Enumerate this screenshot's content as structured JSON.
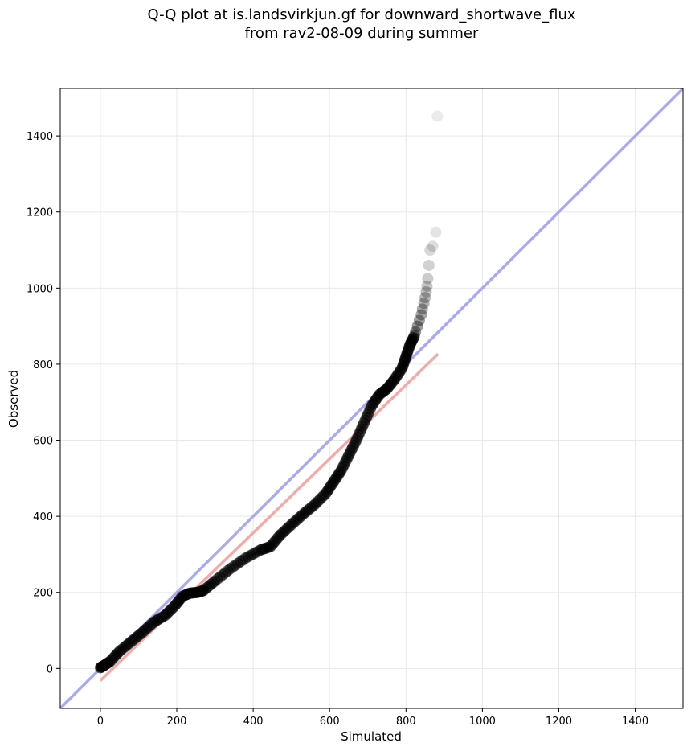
{
  "chart_data": {
    "type": "scatter",
    "title": "Q-Q plot at is.landsvirkjun.gf for downward_shortwave_flux",
    "subtitle": "from rav2-08-09 during summer",
    "xlabel": "Simulated",
    "ylabel": "Observed",
    "xlim": [
      -105,
      1525
    ],
    "ylim": [
      -105,
      1525
    ],
    "xticks": [
      0,
      200,
      400,
      600,
      800,
      1000,
      1200,
      1400
    ],
    "yticks": [
      0,
      200,
      400,
      600,
      800,
      1000,
      1200,
      1400
    ],
    "grid": true,
    "colors": {
      "points": "#000000",
      "identity_line": "#aaaaf0",
      "fit_line": "#f4aaaa",
      "grid": "#e8e8e8"
    },
    "identity_line": {
      "x": [
        -105,
        1525
      ],
      "y": [
        -105,
        1525
      ]
    },
    "fit_line": {
      "x": [
        0,
        884
      ],
      "y": [
        -32,
        827
      ]
    },
    "quantile_curve": [
      [
        0,
        2
      ],
      [
        10,
        8
      ],
      [
        25,
        18
      ],
      [
        50,
        45
      ],
      [
        80,
        70
      ],
      [
        110,
        95
      ],
      [
        140,
        122
      ],
      [
        170,
        140
      ],
      [
        195,
        165
      ],
      [
        215,
        190
      ],
      [
        235,
        198
      ],
      [
        255,
        200
      ],
      [
        270,
        205
      ],
      [
        300,
        230
      ],
      [
        340,
        262
      ],
      [
        380,
        290
      ],
      [
        420,
        312
      ],
      [
        445,
        320
      ],
      [
        470,
        350
      ],
      [
        500,
        378
      ],
      [
        530,
        405
      ],
      [
        560,
        430
      ],
      [
        590,
        460
      ],
      [
        610,
        490
      ],
      [
        630,
        520
      ],
      [
        650,
        560
      ],
      [
        670,
        600
      ],
      [
        690,
        645
      ],
      [
        710,
        690
      ],
      [
        730,
        720
      ],
      [
        750,
        735
      ],
      [
        770,
        760
      ],
      [
        790,
        790
      ],
      [
        800,
        820
      ],
      [
        810,
        850
      ],
      [
        820,
        870
      ]
    ],
    "tail_points": [
      [
        822,
        875
      ],
      [
        825,
        885
      ],
      [
        830,
        900
      ],
      [
        835,
        915
      ],
      [
        840,
        930
      ],
      [
        843,
        945
      ],
      [
        847,
        960
      ],
      [
        850,
        975
      ],
      [
        853,
        990
      ],
      [
        855,
        1005
      ],
      [
        857,
        1025
      ],
      [
        860,
        1060
      ],
      [
        863,
        1100
      ],
      [
        870,
        1110
      ],
      [
        878,
        1147
      ],
      [
        882,
        1452
      ]
    ]
  }
}
